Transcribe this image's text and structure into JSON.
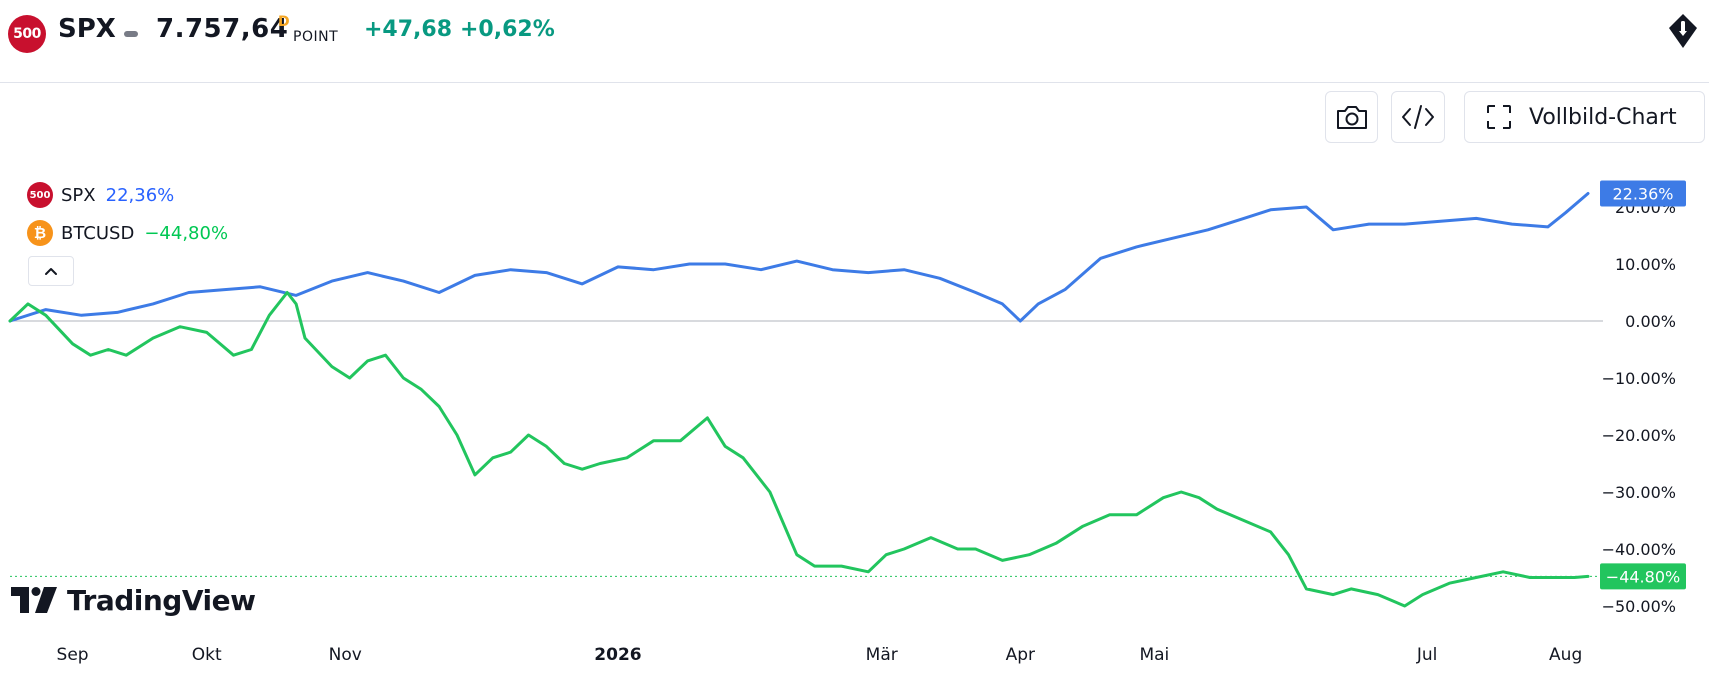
{
  "header": {
    "logo_text": "500",
    "symbol": "SPX",
    "price": "7.757,64",
    "price_flag": "D",
    "unit": "POINT",
    "change": "+47,68",
    "change_pct": "+0,62%"
  },
  "toolbar": {
    "camera_icon": "camera-icon",
    "embed_icon": "code-icon",
    "fullscreen_icon": "fullscreen-icon",
    "fullscreen_label": "Vollbild-Chart"
  },
  "legend": {
    "collapse_icon": "chevron-up-icon",
    "items": [
      {
        "logo_text": "500",
        "name": "SPX",
        "value": "22,36%",
        "color": "#3d7be6"
      },
      {
        "logo_text": "₿",
        "name": "BTCUSD",
        "value": "−44,80%",
        "color": "#22c55e"
      }
    ]
  },
  "watermark": {
    "text": "TradingView"
  },
  "colors": {
    "up": "#089981",
    "spx": "#3d7be6",
    "btc": "#22c55e",
    "zero_line": "#b2b5be"
  },
  "chart_data": {
    "type": "line",
    "ylabel_unit": "%",
    "y_ticks": [
      {
        "value": 20,
        "label": "20.00%"
      },
      {
        "value": 10,
        "label": "10.00%"
      },
      {
        "value": 0,
        "label": "0.00%"
      },
      {
        "value": -10,
        "label": "−10.00%"
      },
      {
        "value": -20,
        "label": "−20.00%"
      },
      {
        "value": -30,
        "label": "−30.00%"
      },
      {
        "value": -40,
        "label": "−40.00%"
      },
      {
        "value": -50,
        "label": "−50.00%"
      }
    ],
    "ylim": [
      -55,
      24
    ],
    "x_ticks": [
      {
        "day": 14,
        "label": "Sep",
        "bold": false
      },
      {
        "day": 44,
        "label": "Okt",
        "bold": false
      },
      {
        "day": 75,
        "label": "Nov",
        "bold": false
      },
      {
        "day": 136,
        "label": "2026",
        "bold": true
      },
      {
        "day": 195,
        "label": "Mär",
        "bold": false
      },
      {
        "day": 226,
        "label": "Apr",
        "bold": false
      },
      {
        "day": 256,
        "label": "Mai",
        "bold": false
      },
      {
        "day": 317,
        "label": "Jul",
        "bold": false
      },
      {
        "day": 348,
        "label": "Aug",
        "bold": false
      }
    ],
    "xlim": [
      0,
      353
    ],
    "series": [
      {
        "name": "SPX",
        "last_value_label": "22.36%",
        "last_value": 22.36,
        "points": [
          [
            0,
            0
          ],
          [
            8,
            2
          ],
          [
            16,
            1
          ],
          [
            24,
            1.5
          ],
          [
            32,
            3
          ],
          [
            40,
            5
          ],
          [
            48,
            5.5
          ],
          [
            56,
            6
          ],
          [
            64,
            4.5
          ],
          [
            72,
            7
          ],
          [
            80,
            8.5
          ],
          [
            88,
            7
          ],
          [
            96,
            5
          ],
          [
            104,
            8
          ],
          [
            112,
            9
          ],
          [
            120,
            8.5
          ],
          [
            128,
            6.5
          ],
          [
            136,
            9.5
          ],
          [
            144,
            9
          ],
          [
            152,
            10
          ],
          [
            160,
            10
          ],
          [
            168,
            9
          ],
          [
            176,
            10.5
          ],
          [
            184,
            9
          ],
          [
            192,
            8.5
          ],
          [
            200,
            9
          ],
          [
            208,
            7.5
          ],
          [
            216,
            5
          ],
          [
            222,
            3
          ],
          [
            226,
            0
          ],
          [
            230,
            3
          ],
          [
            236,
            5.5
          ],
          [
            244,
            11
          ],
          [
            252,
            13
          ],
          [
            260,
            14.5
          ],
          [
            268,
            16
          ],
          [
            276,
            18
          ],
          [
            282,
            19.5
          ],
          [
            290,
            20
          ],
          [
            296,
            16
          ],
          [
            304,
            17
          ],
          [
            312,
            17
          ],
          [
            320,
            17.5
          ],
          [
            328,
            18
          ],
          [
            336,
            17
          ],
          [
            344,
            16.5
          ],
          [
            348,
            19
          ],
          [
            353,
            22.36
          ]
        ]
      },
      {
        "name": "BTCUSD",
        "last_value_label": "−44.80%",
        "last_value": -44.8,
        "points": [
          [
            0,
            0
          ],
          [
            4,
            3
          ],
          [
            8,
            1
          ],
          [
            14,
            -4
          ],
          [
            18,
            -6
          ],
          [
            22,
            -5
          ],
          [
            26,
            -6
          ],
          [
            32,
            -3
          ],
          [
            38,
            -1
          ],
          [
            44,
            -2
          ],
          [
            50,
            -6
          ],
          [
            54,
            -5
          ],
          [
            58,
            1
          ],
          [
            62,
            5
          ],
          [
            64,
            3
          ],
          [
            66,
            -3
          ],
          [
            72,
            -8
          ],
          [
            76,
            -10
          ],
          [
            80,
            -7
          ],
          [
            84,
            -6
          ],
          [
            88,
            -10
          ],
          [
            92,
            -12
          ],
          [
            96,
            -15
          ],
          [
            100,
            -20
          ],
          [
            104,
            -27
          ],
          [
            108,
            -24
          ],
          [
            112,
            -23
          ],
          [
            116,
            -20
          ],
          [
            120,
            -22
          ],
          [
            124,
            -25
          ],
          [
            128,
            -26
          ],
          [
            132,
            -25
          ],
          [
            138,
            -24
          ],
          [
            144,
            -21
          ],
          [
            150,
            -21
          ],
          [
            156,
            -17
          ],
          [
            160,
            -22
          ],
          [
            164,
            -24
          ],
          [
            170,
            -30
          ],
          [
            176,
            -41
          ],
          [
            180,
            -43
          ],
          [
            186,
            -43
          ],
          [
            192,
            -44
          ],
          [
            196,
            -41
          ],
          [
            200,
            -40
          ],
          [
            206,
            -38
          ],
          [
            212,
            -40
          ],
          [
            216,
            -40
          ],
          [
            222,
            -42
          ],
          [
            228,
            -41
          ],
          [
            234,
            -39
          ],
          [
            240,
            -36
          ],
          [
            246,
            -34
          ],
          [
            252,
            -34
          ],
          [
            258,
            -31
          ],
          [
            262,
            -30
          ],
          [
            266,
            -31
          ],
          [
            270,
            -33
          ],
          [
            276,
            -35
          ],
          [
            282,
            -37
          ],
          [
            286,
            -41
          ],
          [
            290,
            -47
          ],
          [
            296,
            -48
          ],
          [
            300,
            -47
          ],
          [
            306,
            -48
          ],
          [
            312,
            -50
          ],
          [
            316,
            -48
          ],
          [
            322,
            -46
          ],
          [
            328,
            -45
          ],
          [
            334,
            -44
          ],
          [
            340,
            -45
          ],
          [
            346,
            -45
          ],
          [
            350,
            -45
          ],
          [
            353,
            -44.8
          ]
        ]
      }
    ]
  }
}
